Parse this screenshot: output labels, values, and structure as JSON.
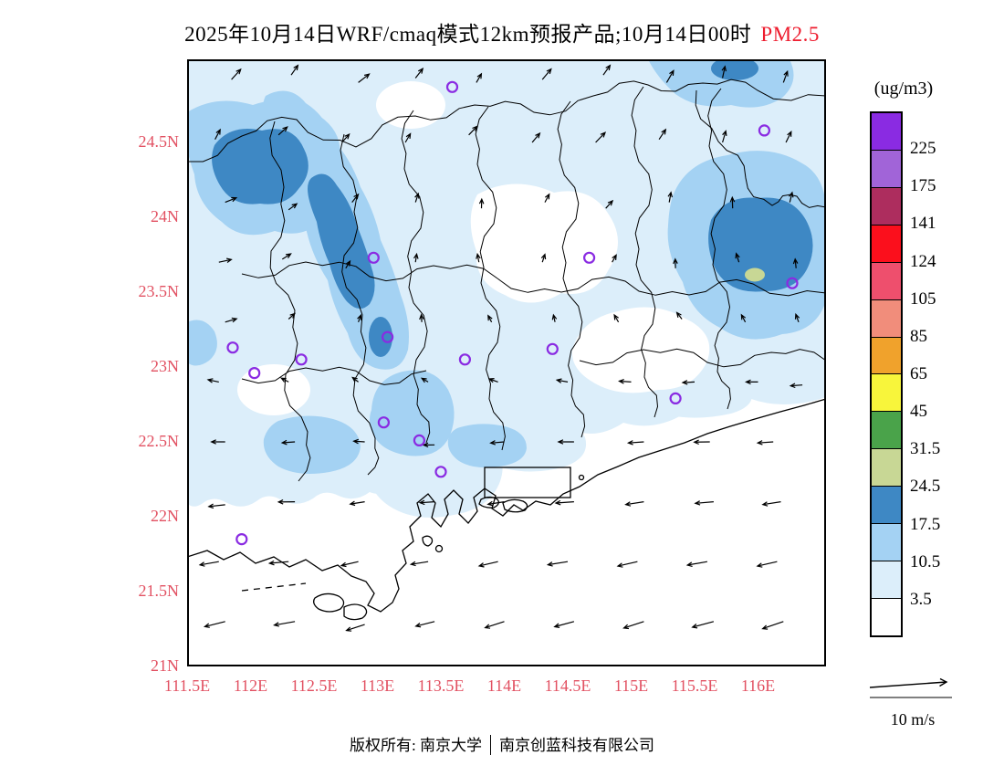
{
  "title": {
    "text": "2025年10月14日WRF/cmaq模式12km预报产品;10月14日00时",
    "species": "PM2.5",
    "species_color": "#ee1c2e"
  },
  "colorbar": {
    "unit": "(ug/m3)",
    "tick_labels": [
      "225",
      "175",
      "141",
      "124",
      "105",
      "85",
      "65",
      "45",
      "31.5",
      "24.5",
      "17.5",
      "10.5",
      "3.5"
    ],
    "colors_top_to_bottom": [
      "#8a2be2",
      "#a164d8",
      "#ad2d5e",
      "#fb0f1c",
      "#ee4f6d",
      "#f18d7b",
      "#f0a22c",
      "#f8f53b",
      "#4aa34a",
      "#c8d795",
      "#3e88c4",
      "#a4d2f3",
      "#dceefa",
      "#ffffff"
    ]
  },
  "map": {
    "axis_label_color": "#e25162",
    "x_ticks": [
      "111.5E",
      "112E",
      "112.5E",
      "113E",
      "113.5E",
      "114E",
      "114.5E",
      "115E",
      "115.5E",
      "116E"
    ],
    "y_ticks": [
      "24.5N",
      "24N",
      "23.5N",
      "23N",
      "22.5N",
      "22N",
      "21.5N",
      "21N"
    ],
    "marker_color": "#8a2be2",
    "station_markers": [
      [
        113.59,
        24.87
      ],
      [
        116.05,
        24.58
      ],
      [
        112.97,
        23.73
      ],
      [
        116.27,
        23.56
      ],
      [
        114.67,
        23.73
      ],
      [
        111.86,
        23.13
      ],
      [
        112.4,
        23.05
      ],
      [
        113.08,
        23.2
      ],
      [
        113.69,
        23.05
      ],
      [
        114.38,
        23.12
      ],
      [
        112.03,
        22.96
      ],
      [
        115.35,
        22.79
      ],
      [
        113.05,
        22.63
      ],
      [
        113.33,
        22.51
      ],
      [
        113.5,
        22.3
      ],
      [
        111.93,
        21.85
      ]
    ],
    "wind_arrows": [
      [
        111.85,
        24.92,
        48,
        15
      ],
      [
        112.32,
        24.95,
        55,
        13
      ],
      [
        112.85,
        24.9,
        38,
        15
      ],
      [
        113.3,
        24.93,
        52,
        13
      ],
      [
        113.78,
        24.9,
        60,
        11
      ],
      [
        114.3,
        24.92,
        50,
        15
      ],
      [
        114.78,
        24.95,
        55,
        13
      ],
      [
        115.28,
        24.9,
        60,
        15
      ],
      [
        115.72,
        24.93,
        78,
        13
      ],
      [
        116.2,
        24.9,
        70,
        13
      ],
      [
        111.72,
        24.52,
        62,
        12
      ],
      [
        112.22,
        24.55,
        42,
        13
      ],
      [
        112.72,
        24.5,
        48,
        12
      ],
      [
        113.22,
        24.5,
        60,
        11
      ],
      [
        113.72,
        24.55,
        46,
        13
      ],
      [
        114.22,
        24.5,
        50,
        13
      ],
      [
        114.72,
        24.5,
        46,
        15
      ],
      [
        115.22,
        24.52,
        56,
        13
      ],
      [
        115.72,
        24.5,
        74,
        13
      ],
      [
        116.22,
        24.5,
        64,
        13
      ],
      [
        111.8,
        24.1,
        22,
        13
      ],
      [
        112.3,
        24.05,
        36,
        11
      ],
      [
        112.8,
        24.1,
        52,
        11
      ],
      [
        113.3,
        24.1,
        72,
        10
      ],
      [
        113.82,
        24.06,
        88,
        10
      ],
      [
        114.32,
        24.1,
        62,
        10
      ],
      [
        114.8,
        24.06,
        48,
        11
      ],
      [
        115.3,
        24.1,
        80,
        11
      ],
      [
        115.8,
        24.06,
        92,
        12
      ],
      [
        116.25,
        24.1,
        76,
        11
      ],
      [
        111.75,
        23.7,
        12,
        14
      ],
      [
        112.25,
        23.72,
        32,
        11
      ],
      [
        112.75,
        23.66,
        58,
        9
      ],
      [
        113.3,
        23.7,
        82,
        9
      ],
      [
        113.8,
        23.7,
        100,
        9
      ],
      [
        114.3,
        23.7,
        72,
        9
      ],
      [
        114.85,
        23.7,
        60,
        9
      ],
      [
        115.35,
        23.66,
        92,
        10
      ],
      [
        115.85,
        23.7,
        108,
        10
      ],
      [
        116.3,
        23.66,
        96,
        10
      ],
      [
        111.8,
        23.3,
        16,
        13
      ],
      [
        112.3,
        23.32,
        42,
        9
      ],
      [
        112.85,
        23.3,
        70,
        8
      ],
      [
        113.35,
        23.3,
        94,
        8
      ],
      [
        113.9,
        23.3,
        118,
        8
      ],
      [
        114.4,
        23.3,
        102,
        8
      ],
      [
        114.9,
        23.3,
        120,
        9
      ],
      [
        115.4,
        23.32,
        128,
        9
      ],
      [
        115.9,
        23.3,
        118,
        9
      ],
      [
        116.32,
        23.3,
        110,
        9
      ],
      [
        111.75,
        22.9,
        168,
        12
      ],
      [
        112.3,
        22.9,
        152,
        9
      ],
      [
        112.85,
        22.9,
        142,
        8
      ],
      [
        113.4,
        22.9,
        150,
        8
      ],
      [
        113.95,
        22.9,
        160,
        10
      ],
      [
        114.5,
        22.9,
        170,
        12
      ],
      [
        115.0,
        22.9,
        176,
        13
      ],
      [
        115.5,
        22.9,
        183,
        13
      ],
      [
        116.0,
        22.9,
        180,
        13
      ],
      [
        116.35,
        22.88,
        184,
        13
      ],
      [
        111.8,
        22.5,
        180,
        15
      ],
      [
        112.35,
        22.5,
        184,
        14
      ],
      [
        112.9,
        22.5,
        176,
        12
      ],
      [
        113.45,
        22.48,
        181,
        12
      ],
      [
        114.0,
        22.5,
        185,
        15
      ],
      [
        114.55,
        22.5,
        180,
        17
      ],
      [
        115.1,
        22.5,
        184,
        17
      ],
      [
        115.62,
        22.5,
        181,
        17
      ],
      [
        116.12,
        22.5,
        184,
        17
      ],
      [
        111.8,
        22.08,
        186,
        18
      ],
      [
        112.35,
        22.1,
        181,
        18
      ],
      [
        112.9,
        22.1,
        189,
        16
      ],
      [
        113.45,
        22.1,
        184,
        16
      ],
      [
        114.0,
        22.1,
        189,
        18
      ],
      [
        114.55,
        22.1,
        184,
        20
      ],
      [
        115.1,
        22.1,
        189,
        20
      ],
      [
        115.65,
        22.1,
        185,
        20
      ],
      [
        116.18,
        22.1,
        189,
        20
      ],
      [
        111.75,
        21.7,
        190,
        21
      ],
      [
        112.3,
        21.7,
        185,
        21
      ],
      [
        112.85,
        21.7,
        193,
        19
      ],
      [
        113.4,
        21.7,
        189,
        19
      ],
      [
        113.95,
        21.7,
        193,
        21
      ],
      [
        114.5,
        21.7,
        189,
        22
      ],
      [
        115.05,
        21.7,
        193,
        22
      ],
      [
        115.6,
        21.7,
        190,
        22
      ],
      [
        116.15,
        21.7,
        193,
        22
      ],
      [
        111.8,
        21.3,
        194,
        23
      ],
      [
        112.35,
        21.3,
        190,
        23
      ],
      [
        112.9,
        21.28,
        198,
        21
      ],
      [
        113.45,
        21.3,
        194,
        21
      ],
      [
        114.0,
        21.3,
        198,
        22
      ],
      [
        114.55,
        21.3,
        195,
        22
      ],
      [
        115.1,
        21.3,
        198,
        23
      ],
      [
        115.65,
        21.3,
        195,
        24
      ],
      [
        116.2,
        21.3,
        199,
        24
      ]
    ]
  },
  "wind_legend": {
    "label": "10 m/s"
  },
  "footer": {
    "left": "版权所有: 南京大学",
    "right": "南京创蓝科技有限公司"
  }
}
